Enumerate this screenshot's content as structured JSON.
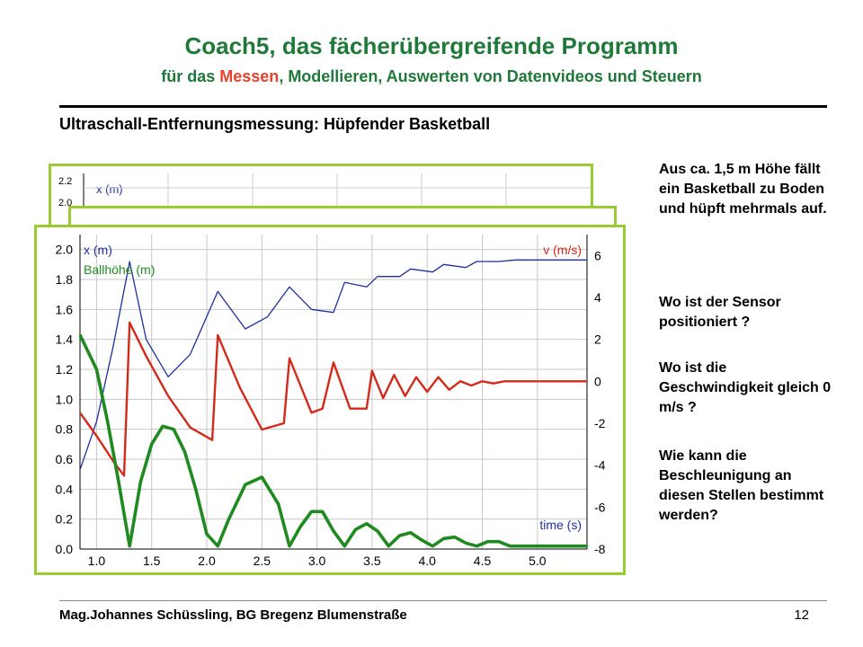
{
  "slide": {
    "title": "Coach5, das fächerübergreifende  Programm",
    "subtitle_before": "für das ",
    "subtitle_highlight": "Messen",
    "subtitle_after": ", Modellieren, Auswerten von Datenvideos und Steuern",
    "section_heading": "Ultraschall-Entfernungsmessung: Hüpfender Basketball",
    "footer": "Mag.Johannes Schüssling, BG Bregenz Blumenstraße",
    "page_number": "12",
    "colors": {
      "title": "#1f7a3a",
      "highlight": "#e8412c",
      "frame": "#99cc33"
    }
  },
  "side_text": {
    "p1": "Aus ca. 1,5 m Höhe fällt ein Basketball zu Boden und hüpft mehrmals auf.",
    "p2": "Wo ist der Sensor positioniert ?",
    "p3": "Wo ist die Geschwindigkeit gleich 0 m/s ?",
    "p4": "Wie kann die Beschleunigung an diesen Stellen bestimmt werden?"
  },
  "back_graph_labels": {
    "y_top": "2.2",
    "y_second": "2.0",
    "series": "x (m)"
  },
  "chart_data": {
    "type": "line",
    "xlabel": "time (s)",
    "x_ticks": [
      "1.0",
      "1.5",
      "2.0",
      "2.5",
      "3.0",
      "3.5",
      "4.0",
      "4.5",
      "5.0"
    ],
    "xlim": [
      0.85,
      5.45
    ],
    "y_left_ticks": [
      "0.0",
      "0.2",
      "0.4",
      "0.6",
      "0.8",
      "1.0",
      "1.2",
      "1.4",
      "1.6",
      "1.8",
      "2.0"
    ],
    "ylim_left": [
      0,
      2.1
    ],
    "y_right_ticks": [
      "-8",
      "-6",
      "-4",
      "-2",
      "0",
      "2",
      "4",
      "6"
    ],
    "ylim_right": [
      -8,
      7
    ],
    "y_right_label": "v (m/s)",
    "grid": true,
    "series": [
      {
        "name": "x (m)",
        "axis": "left",
        "color": "#1f2f9e",
        "x": [
          0.85,
          1.0,
          1.15,
          1.3,
          1.45,
          1.65,
          1.85,
          2.1,
          2.35,
          2.55,
          2.75,
          2.95,
          3.15,
          3.25,
          3.45,
          3.55,
          3.75,
          3.85,
          4.05,
          4.15,
          4.35,
          4.45,
          4.65,
          4.8,
          5.0,
          5.45
        ],
        "y": [
          0.53,
          0.85,
          1.35,
          1.92,
          1.4,
          1.15,
          1.3,
          1.72,
          1.47,
          1.55,
          1.75,
          1.6,
          1.58,
          1.78,
          1.75,
          1.82,
          1.82,
          1.87,
          1.85,
          1.9,
          1.88,
          1.92,
          1.92,
          1.93,
          1.93,
          1.93
        ]
      },
      {
        "name": "v (m/s)",
        "axis": "right",
        "color": "#d42a1a",
        "x": [
          0.85,
          1.0,
          1.15,
          1.25,
          1.3,
          1.45,
          1.65,
          1.85,
          2.05,
          2.1,
          2.3,
          2.5,
          2.7,
          2.75,
          2.95,
          3.05,
          3.15,
          3.3,
          3.45,
          3.5,
          3.6,
          3.7,
          3.8,
          3.9,
          4.0,
          4.1,
          4.2,
          4.3,
          4.4,
          4.5,
          4.6,
          4.7,
          4.8,
          5.45
        ],
        "y": [
          -1.5,
          -2.6,
          -3.8,
          -4.5,
          2.8,
          1.2,
          -0.7,
          -2.2,
          -2.8,
          2.2,
          -0.3,
          -2.3,
          -2.0,
          1.1,
          -1.5,
          -1.3,
          0.9,
          -1.3,
          -1.3,
          0.5,
          -0.8,
          0.3,
          -0.7,
          0.2,
          -0.5,
          0.2,
          -0.4,
          0.0,
          -0.2,
          0.0,
          -0.1,
          0.0,
          0.0,
          0.0
        ]
      },
      {
        "name": "Ballhöhe (m)",
        "axis": "left",
        "color": "#1f8a1f",
        "x": [
          0.85,
          1.0,
          1.1,
          1.2,
          1.3,
          1.4,
          1.5,
          1.6,
          1.7,
          1.8,
          1.9,
          2.0,
          2.1,
          2.2,
          2.35,
          2.5,
          2.65,
          2.75,
          2.85,
          2.95,
          3.05,
          3.15,
          3.25,
          3.35,
          3.45,
          3.55,
          3.65,
          3.75,
          3.85,
          3.95,
          4.05,
          4.15,
          4.25,
          4.35,
          4.45,
          4.55,
          4.65,
          4.75,
          4.85,
          5.0,
          5.45
        ],
        "y": [
          1.43,
          1.2,
          0.85,
          0.45,
          0.02,
          0.45,
          0.7,
          0.82,
          0.8,
          0.65,
          0.4,
          0.1,
          0.02,
          0.2,
          0.43,
          0.48,
          0.3,
          0.02,
          0.15,
          0.25,
          0.25,
          0.12,
          0.02,
          0.13,
          0.17,
          0.12,
          0.02,
          0.09,
          0.11,
          0.06,
          0.02,
          0.07,
          0.08,
          0.04,
          0.02,
          0.05,
          0.05,
          0.02,
          0.02,
          0.02,
          0.02
        ]
      }
    ]
  }
}
